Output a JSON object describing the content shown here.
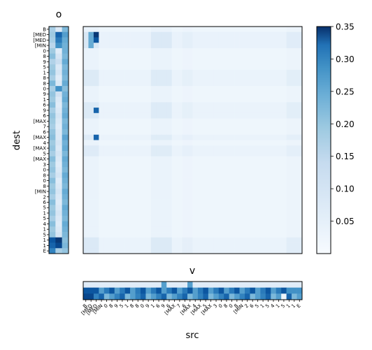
{
  "chart_data": [
    {
      "type": "heatmap",
      "id": "o",
      "title": "o",
      "ylabel": "dest",
      "columns": 3,
      "y_tick_labels": [
        "B",
        "[MED",
        "[MED",
        "[MIN",
        "0",
        "8",
        "9",
        "5",
        "1",
        "8",
        "8",
        "0",
        "9",
        "1",
        "6",
        "9",
        "6",
        "[MAX",
        "7",
        "6",
        "[MAX",
        "4",
        "[MAX",
        "5",
        "[MAX",
        "3",
        "0",
        "8",
        "0",
        "8",
        "[MIN",
        "2",
        "6",
        "5",
        "1",
        "5",
        "4",
        "1",
        "5",
        "1",
        "1",
        "E"
      ],
      "values": [
        [
          0.12,
          0.05,
          0.16
        ],
        [
          0.13,
          0.28,
          0.2
        ],
        [
          0.12,
          0.25,
          0.18
        ],
        [
          0.1,
          0.22,
          0.17
        ],
        [
          0.13,
          0.04,
          0.17
        ],
        [
          0.15,
          0.06,
          0.16
        ],
        [
          0.11,
          0.08,
          0.18
        ],
        [
          0.13,
          0.05,
          0.16
        ],
        [
          0.14,
          0.06,
          0.17
        ],
        [
          0.12,
          0.04,
          0.16
        ],
        [
          0.16,
          0.05,
          0.18
        ],
        [
          0.12,
          0.22,
          0.15
        ],
        [
          0.14,
          0.07,
          0.17
        ],
        [
          0.13,
          0.05,
          0.18
        ],
        [
          0.15,
          0.04,
          0.16
        ],
        [
          0.12,
          0.05,
          0.17
        ],
        [
          0.14,
          0.06,
          0.18
        ],
        [
          0.13,
          0.05,
          0.16
        ],
        [
          0.12,
          0.04,
          0.17
        ],
        [
          0.14,
          0.05,
          0.16
        ],
        [
          0.15,
          0.05,
          0.19
        ],
        [
          0.13,
          0.06,
          0.17
        ],
        [
          0.14,
          0.05,
          0.18
        ],
        [
          0.12,
          0.06,
          0.16
        ],
        [
          0.15,
          0.05,
          0.18
        ],
        [
          0.13,
          0.04,
          0.17
        ],
        [
          0.14,
          0.05,
          0.16
        ],
        [
          0.12,
          0.06,
          0.18
        ],
        [
          0.15,
          0.04,
          0.17
        ],
        [
          0.13,
          0.05,
          0.16
        ],
        [
          0.14,
          0.06,
          0.18
        ],
        [
          0.12,
          0.05,
          0.17
        ],
        [
          0.15,
          0.04,
          0.16
        ],
        [
          0.13,
          0.05,
          0.18
        ],
        [
          0.14,
          0.06,
          0.17
        ],
        [
          0.12,
          0.05,
          0.16
        ],
        [
          0.15,
          0.04,
          0.18
        ],
        [
          0.13,
          0.05,
          0.17
        ],
        [
          0.14,
          0.06,
          0.16
        ],
        [
          0.3,
          0.34,
          0.15
        ],
        [
          0.28,
          0.32,
          0.16
        ],
        [
          0.24,
          0.12,
          0.14
        ]
      ]
    },
    {
      "type": "heatmap",
      "id": "main",
      "rows": 42,
      "columns": 42,
      "values": [],
      "notes": "attention matrix, mostly near 0.01-0.05 with highlighted rows and columns"
    },
    {
      "type": "heatmap",
      "id": "v",
      "title": "v",
      "xlabel": "src",
      "rows": 3,
      "x_tick_labels": [
        "B",
        "[MED",
        "[MED",
        "[MIN",
        "0",
        "8",
        "9",
        "5",
        "1",
        "8",
        "8",
        "0",
        "9",
        "1",
        "6",
        "9",
        "6",
        "[MAX",
        "7",
        "6",
        "[MAX",
        "4",
        "[MAX",
        "5",
        "[MAX",
        "3",
        "0",
        "8",
        "0",
        "8",
        "[MIN",
        "2",
        "6",
        "5",
        "1",
        "5",
        "4",
        "1",
        "5",
        "1",
        "1",
        "E"
      ],
      "values": [],
      "notes": "top row light, middle and bottom rows dark"
    },
    {
      "type": "colorbar",
      "range": [
        0.0,
        0.35
      ],
      "ticks": [
        0.05,
        0.1,
        0.15,
        0.2,
        0.25,
        0.3,
        0.35
      ],
      "tick_labels": [
        "0.05",
        "0.10",
        "0.15",
        "0.20",
        "0.25",
        "0.30",
        "0.35"
      ]
    }
  ],
  "colors": {
    "scale_low": "#f7fbff",
    "scale_mid": "#6baed6",
    "scale_high": "#08306b",
    "frame": "#000000"
  }
}
